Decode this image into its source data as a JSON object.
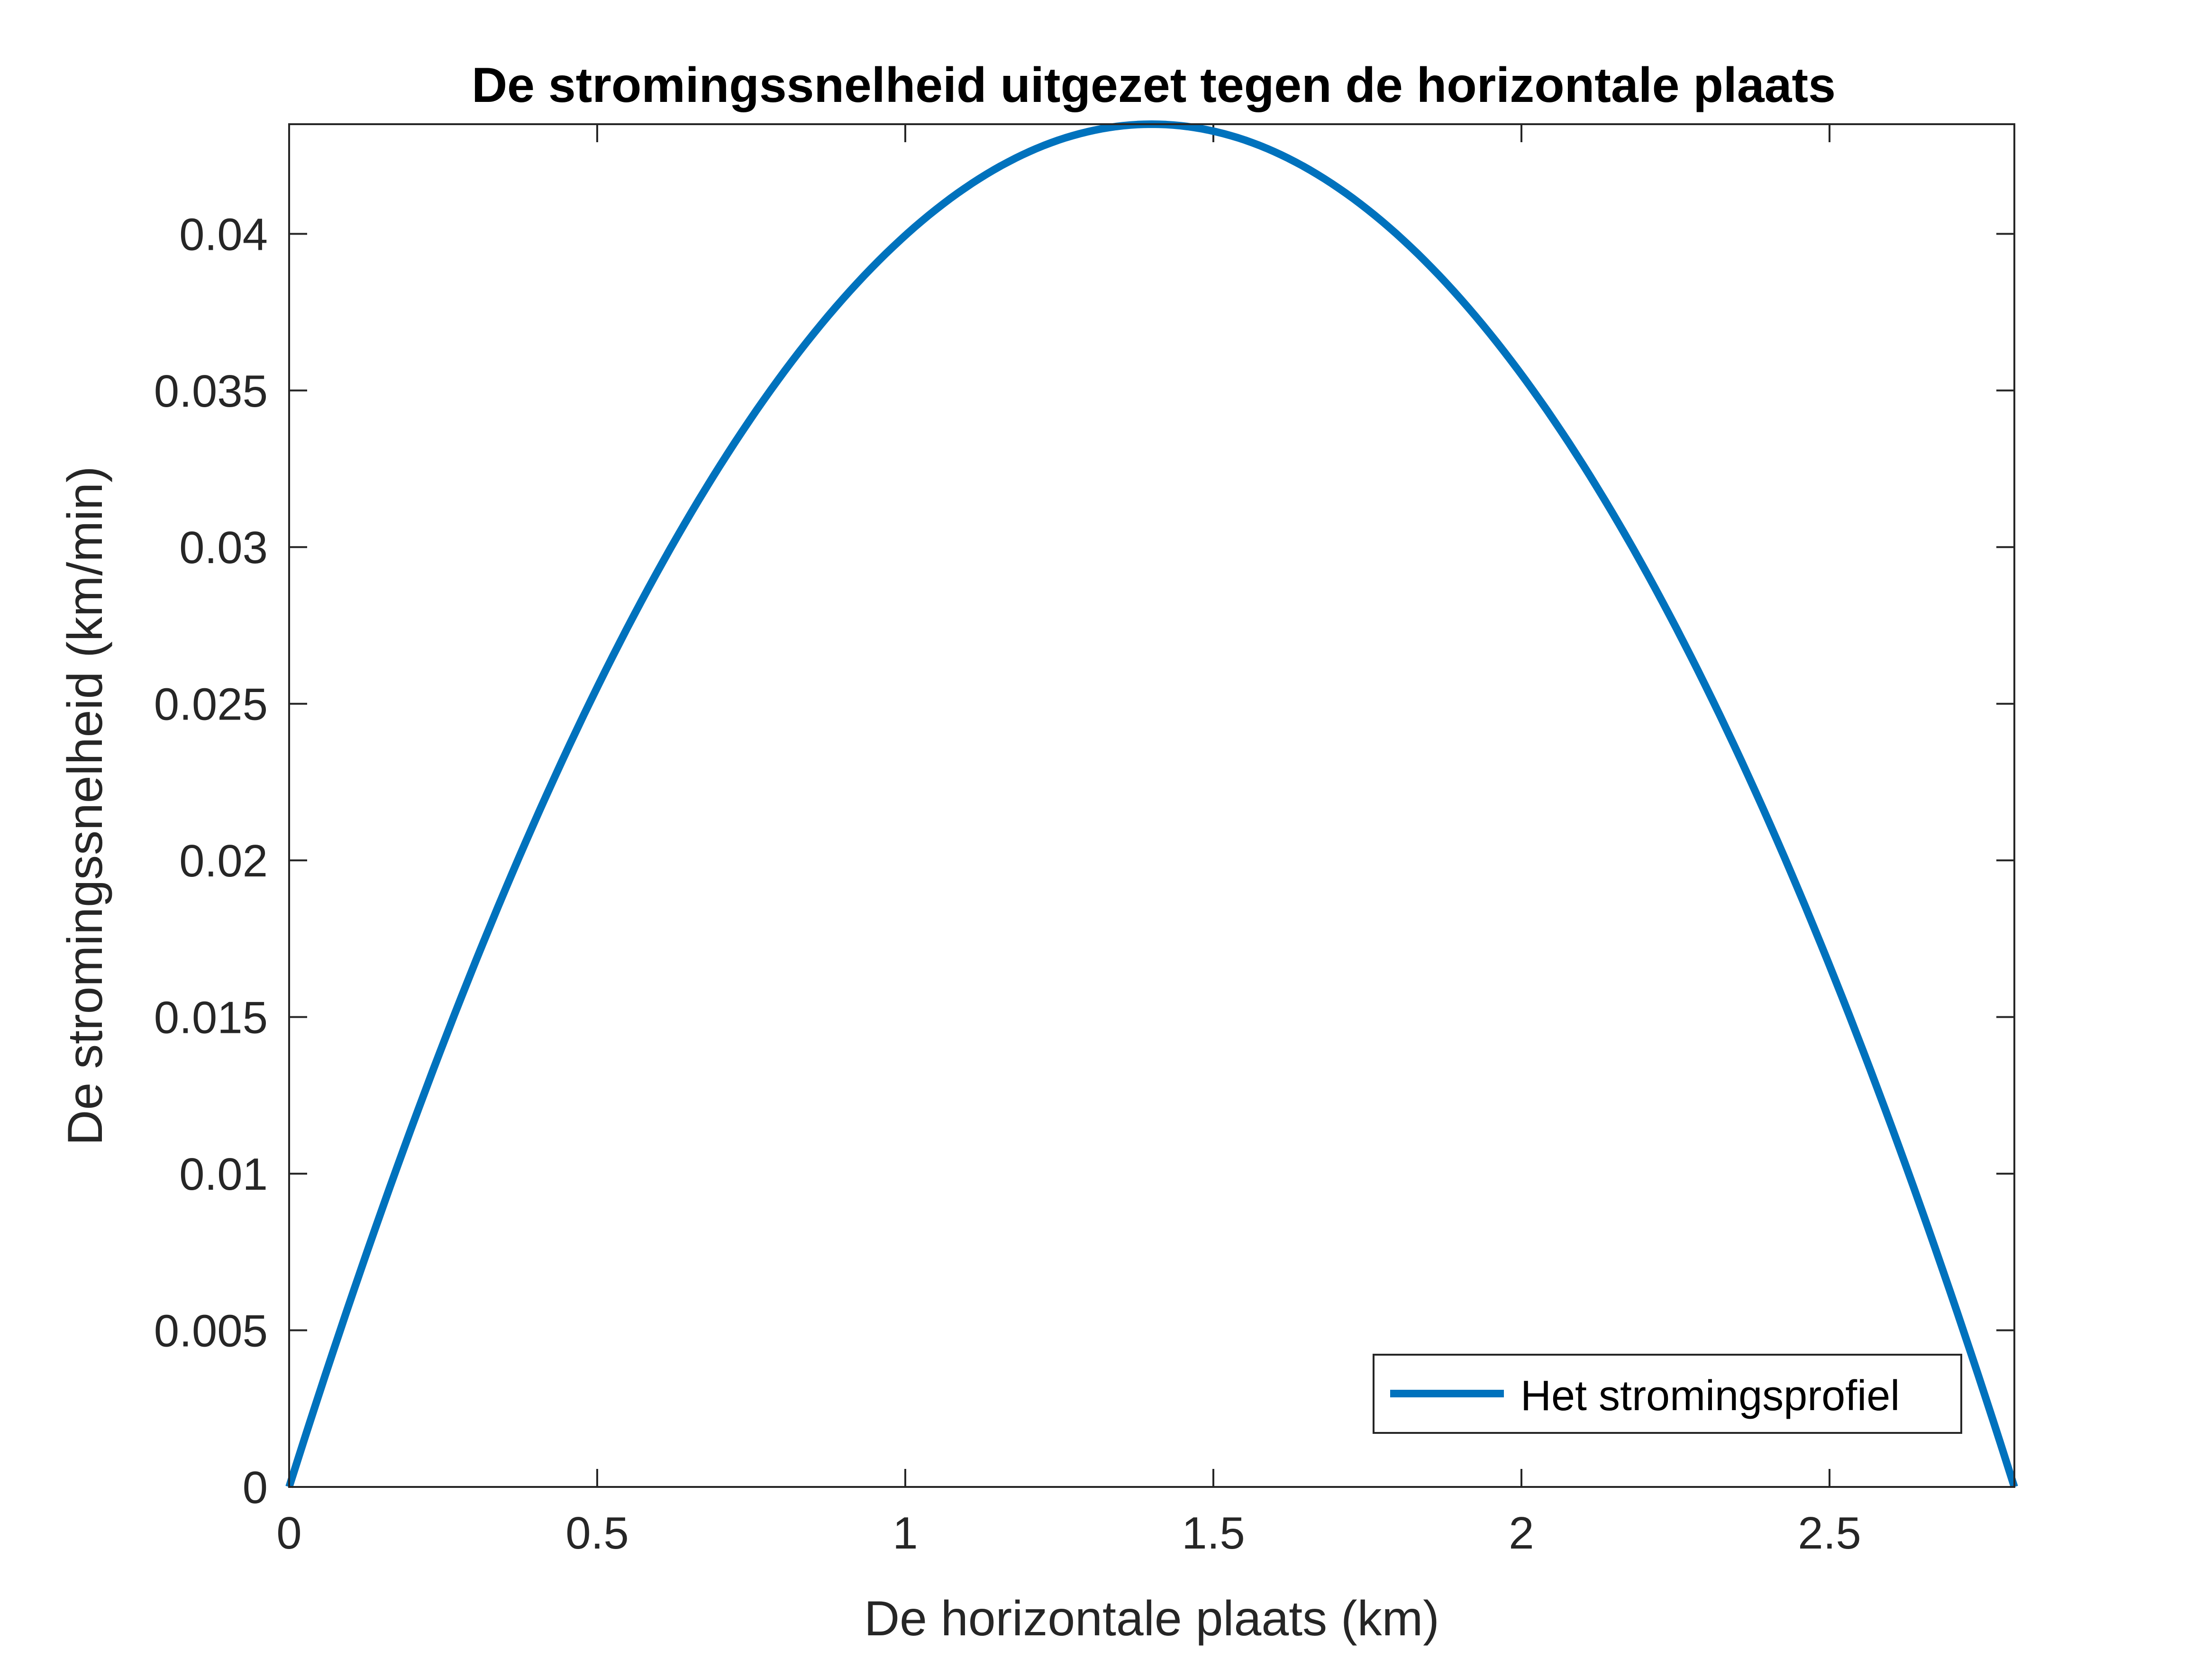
{
  "chart_data": {
    "type": "line",
    "title": "De stromingssnelheid uitgezet tegen de horizontale plaats",
    "xlabel": "De horizontale plaats (km)",
    "ylabel": "De stromingssnelheid (km/min)",
    "xlim": [
      0,
      2.8
    ],
    "ylim": [
      0,
      0.0435
    ],
    "xticks": [
      0,
      0.5,
      1,
      1.5,
      2,
      2.5
    ],
    "xtick_labels": [
      "0",
      "0.5",
      "1",
      "1.5",
      "2",
      "2.5"
    ],
    "yticks": [
      0,
      0.005,
      0.01,
      0.015,
      0.02,
      0.025,
      0.03,
      0.035,
      0.04
    ],
    "ytick_labels": [
      "0",
      "0.005",
      "0.01",
      "0.015",
      "0.02",
      "0.025",
      "0.03",
      "0.035",
      "0.04"
    ],
    "grid": false,
    "legend": {
      "position": "bottom-right",
      "entries": [
        "Het stromingsprofiel"
      ]
    },
    "series": [
      {
        "name": "Het stromingsprofiel",
        "color": "#0072BD",
        "x": [
          0,
          0.14,
          0.28,
          0.42,
          0.56,
          0.7,
          0.84,
          0.98,
          1.12,
          1.26,
          1.4,
          1.54,
          1.68,
          1.82,
          1.96,
          2.1,
          2.24,
          2.38,
          2.52,
          2.66,
          2.8
        ],
        "y": [
          0,
          0.00827,
          0.01566,
          0.02219,
          0.02784,
          0.03263,
          0.03654,
          0.03959,
          0.04176,
          0.04307,
          0.0435,
          0.04307,
          0.04176,
          0.03959,
          0.03654,
          0.03263,
          0.02784,
          0.02219,
          0.01566,
          0.00827,
          0
        ]
      }
    ]
  }
}
